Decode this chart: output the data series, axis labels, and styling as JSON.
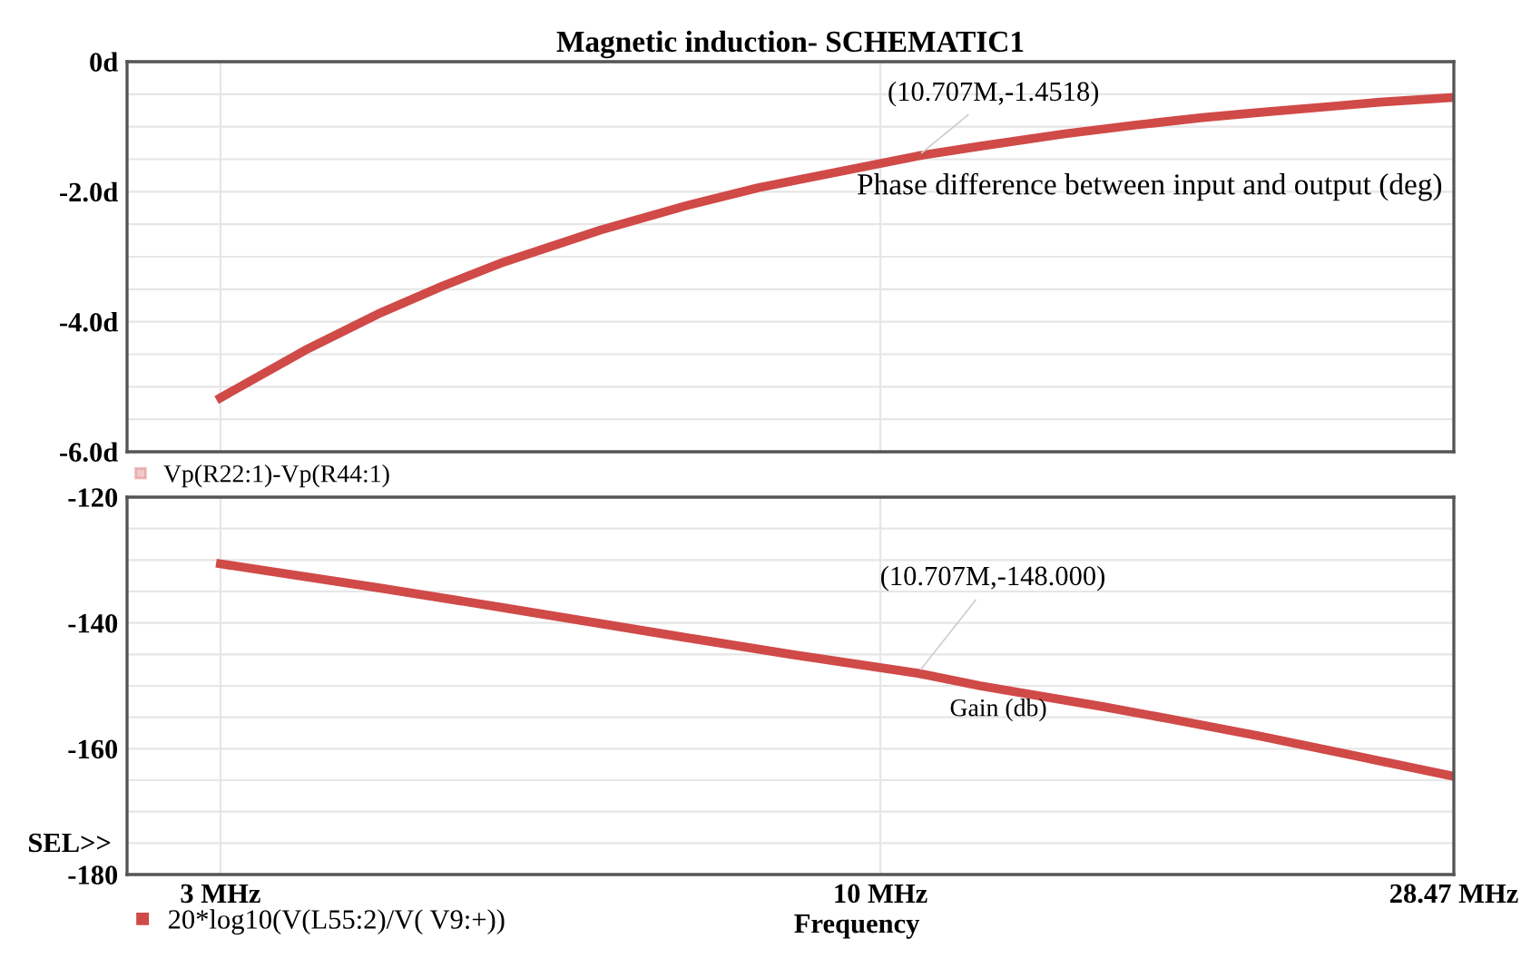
{
  "chart_data": [
    {
      "type": "line",
      "title": "Magnetic induction- SCHEMATIC1",
      "log": "x",
      "grid": true,
      "legend": "bottom left",
      "tick_labels": "y",
      "x": [
        3,
        3.5,
        4,
        4.5,
        5,
        6,
        7,
        8,
        10.707,
        12,
        14,
        16,
        18,
        20,
        23,
        25,
        28.47
      ],
      "series": [
        {
          "name": "Vp(R22:1)-Vp(R44:1)",
          "color": "#d04a48",
          "values": [
            -5.17,
            -4.44,
            -3.88,
            -3.45,
            -3.1,
            -2.59,
            -2.22,
            -1.94,
            -1.45,
            -1.3,
            -1.11,
            -0.97,
            -0.86,
            -0.78,
            -0.68,
            -0.62,
            -0.55
          ]
        }
      ],
      "xlim": [
        2.53,
        28.47
      ],
      "xticks": [
        {
          "value": 3,
          "label": null
        },
        {
          "value": 10,
          "label": null
        },
        {
          "value": 28.47,
          "label": null
        }
      ],
      "ylim": [
        -6,
        0
      ],
      "yticks": [
        {
          "value": 0,
          "label": "0d"
        },
        {
          "value": -0.5,
          "label": null
        },
        {
          "value": -1,
          "label": null
        },
        {
          "value": -1.5,
          "label": null
        },
        {
          "value": -2,
          "label": "-2.0d"
        },
        {
          "value": -2.5,
          "label": null
        },
        {
          "value": -3,
          "label": null
        },
        {
          "value": -3.5,
          "label": null
        },
        {
          "value": -4,
          "label": "-4.0d"
        },
        {
          "value": -4.5,
          "label": null
        },
        {
          "value": -5,
          "label": null
        },
        {
          "value": -5.5,
          "label": null
        },
        {
          "value": -6,
          "label": "-6.0d"
        }
      ],
      "annotations": [
        {
          "text": "(10.707M,-1.4518)",
          "x": 10.707,
          "y": -1.4518
        },
        "Phase difference between input and output (deg)"
      ]
    },
    {
      "type": "line",
      "xlabel": "Frequency",
      "log": "x",
      "grid": true,
      "legend": "bottom left",
      "x": [
        3,
        4,
        5,
        6,
        7,
        8.5,
        10.707,
        12,
        15,
        17,
        20,
        24,
        28.47
      ],
      "series": [
        {
          "name": "20*log10(V(L55:2)/V( V9:+))",
          "color": "#d04a48",
          "values": [
            -130.6,
            -134.4,
            -137.5,
            -140.1,
            -142.3,
            -145.0,
            -148.0,
            -150.0,
            -153.3,
            -155.3,
            -158.0,
            -161.3,
            -164.4
          ]
        }
      ],
      "xlim": [
        2.53,
        28.47
      ],
      "xticks": [
        {
          "value": 3,
          "label": "3 MHz"
        },
        {
          "value": 10,
          "label": "10 MHz"
        },
        {
          "value": 28.47,
          "label": "28.47 MHz"
        }
      ],
      "ylim": [
        -180,
        -120
      ],
      "yticks": [
        -120,
        {
          "value": -125,
          "label": null
        },
        {
          "value": -130,
          "label": null
        },
        {
          "value": -135,
          "label": null
        },
        -140,
        {
          "value": -145,
          "label": null
        },
        {
          "value": -150,
          "label": null
        },
        {
          "value": -155,
          "label": null
        },
        -160,
        {
          "value": -165,
          "label": null
        },
        {
          "value": -170,
          "label": null
        },
        {
          "value": -175,
          "label": null
        },
        -180
      ],
      "annotations": [
        {
          "text": "(10.707M,-148.000)",
          "x": 10.707,
          "y": -148.0
        },
        "Gain (db)",
        "SEL>>"
      ]
    }
  ]
}
